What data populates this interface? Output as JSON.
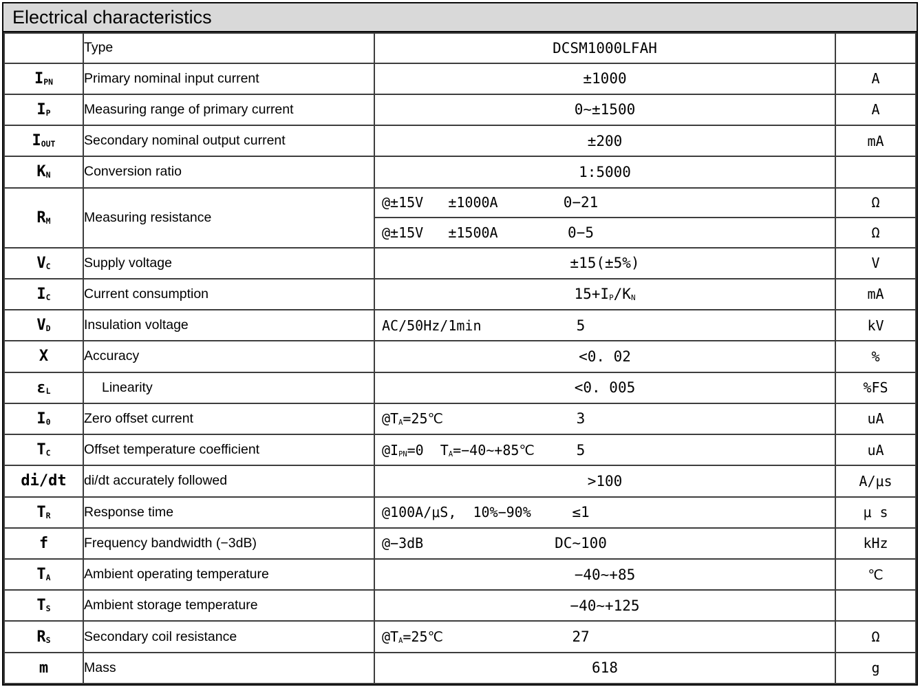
{
  "title": "Electrical characteristics",
  "colors": {
    "title_bg": "#d9d9d9",
    "frame_border": "#0a0a0a",
    "grid": "#3d3d3d",
    "text": "#000000"
  },
  "header_row": {
    "type_label": "Type",
    "type_value": "DCSM1000LFAH",
    "unit": ""
  },
  "rows": [
    {
      "sym": "I<sub>PN</sub>",
      "desc": "Primary nominal input current",
      "value": "±1000",
      "unit": "A"
    },
    {
      "sym": "I<sub>P</sub>",
      "desc": "Measuring range of primary current",
      "value": "0∼±1500",
      "unit": "A"
    },
    {
      "sym": "I<sub>OUT</sub>",
      "desc": "Secondary nominal output current",
      "value": "±200",
      "unit": "mA"
    },
    {
      "sym": "K<sub>N</sub>",
      "desc": "Conversion ratio",
      "value": "1:5000",
      "unit": ""
    },
    {
      "sym": "R<sub>M</sub>",
      "desc": "Measuring resistance",
      "cond": "@±15V&nbsp;&nbsp;&nbsp;±1000A",
      "value": "0−21",
      "unit": "Ω"
    },
    {
      "cond": "@±15V&nbsp;&nbsp;&nbsp;±1500A",
      "value": "0−5",
      "unit": "Ω"
    },
    {
      "sym": "V<sub>C</sub>",
      "desc": "Supply voltage",
      "value": "±15(±5%)",
      "unit": "V"
    },
    {
      "sym": "I<sub>C</sub>",
      "desc": "Current consumption",
      "value": "15+I<sub>P</sub>/K<sub>N</sub>",
      "unit": "mA"
    },
    {
      "sym": "V<sub>D</sub>",
      "desc": "Insulation voltage",
      "cond": "AC/50Hz/1min",
      "value": "5",
      "unit": "kV"
    },
    {
      "sym": "X",
      "desc": "Accuracy",
      "value": "<0. 02",
      "unit": "%"
    },
    {
      "sym": "ε<sub>L</sub>",
      "desc": "Linearity",
      "value": "<0. 005",
      "unit": "%FS"
    },
    {
      "sym": "I<sub>0</sub>",
      "desc": "Zero offset current",
      "cond": "@T<sub>A</sub>=25℃",
      "value": "3",
      "unit": "uA"
    },
    {
      "sym": "T<sub>C</sub>",
      "desc": "Offset temperature coefficient",
      "cond": "@I<sub>PN</sub>=0&nbsp;&nbsp;T<sub>A</sub>=−40∼+85℃",
      "value": "5",
      "unit": "uA"
    },
    {
      "sym": "di/dt",
      "desc": "di/dt accurately followed",
      "value": ">100",
      "unit": "A/μs"
    },
    {
      "sym": "T<sub>R</sub>",
      "desc": "Response time",
      "cond": "@100A/μS,&nbsp;&nbsp;10%−90%",
      "value": "≤1",
      "unit": "μ s"
    },
    {
      "sym": "f",
      "desc": "Frequency bandwidth (−3dB)",
      "cond": "@−3dB",
      "value": "DC∼100",
      "unit": "kHz"
    },
    {
      "sym": "T<sub>A</sub>",
      "desc": "Ambient operating temperature",
      "value": "−40∼+85",
      "unit": "℃"
    },
    {
      "sym": "T<sub>S</sub>",
      "desc": "Ambient storage temperature",
      "value": "−40∼+125",
      "unit": ""
    },
    {
      "sym": "R<sub>S</sub>",
      "desc": "Secondary coil resistance",
      "cond": "@T<sub>A</sub>=25℃",
      "value": "27",
      "unit": "Ω"
    },
    {
      "sym": "m",
      "desc": "Mass",
      "value": "618",
      "unit": "g"
    }
  ]
}
